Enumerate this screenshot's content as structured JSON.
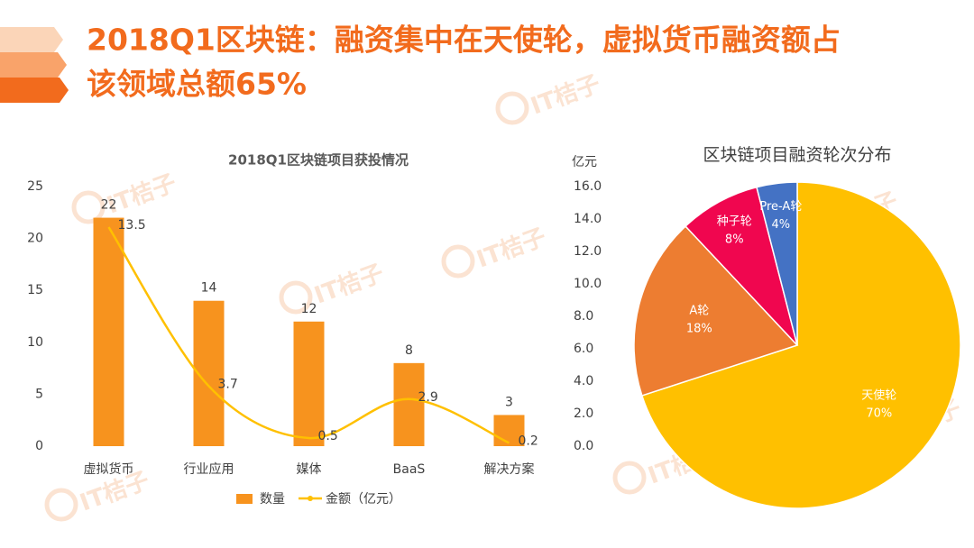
{
  "header": {
    "lines": [
      "2018Q1区块链：融资集中在天使轮，虚拟货币融资额占",
      "该领域总额65%"
    ]
  },
  "watermark": "IT桔子",
  "chart_data": [
    {
      "type": "bar_line",
      "title": "2018Q1区块链项目获投情况",
      "categories": [
        "虚拟货币",
        "行业应用",
        "媒体",
        "BaaS",
        "解决方案"
      ],
      "series": [
        {
          "name": "数量",
          "type": "bar",
          "color": "#f7931e",
          "values": [
            22,
            14,
            12,
            8,
            3
          ]
        },
        {
          "name": "金额（亿元）",
          "type": "line",
          "axis": "y2",
          "color": "#ffc000",
          "values": [
            13.5,
            3.7,
            0.5,
            2.9,
            0.2
          ]
        }
      ],
      "ylim": [
        0,
        25
      ],
      "yticks": [
        0,
        5,
        10,
        15,
        20,
        25
      ],
      "y2label": "亿元",
      "y2lim": [
        0,
        16
      ],
      "y2ticks": [
        {
          "value": 0,
          "label": "0.0"
        },
        {
          "value": 2,
          "label": "2.0"
        },
        {
          "value": 4,
          "label": "4.0"
        },
        {
          "value": 6,
          "label": "6.0"
        },
        {
          "value": 8,
          "label": "8.0"
        },
        {
          "value": 10,
          "label": "10.0"
        },
        {
          "value": 12,
          "label": "12.0"
        },
        {
          "value": 14,
          "label": "14.0"
        },
        {
          "value": 16,
          "label": "16.0"
        }
      ],
      "grid": false,
      "legend": "bottom"
    },
    {
      "type": "pie",
      "title": "区块链项目融资轮次分布",
      "categories": [
        "天使轮",
        "A轮",
        "种子轮",
        "Pre-A轮"
      ],
      "values": [
        70,
        18,
        8,
        4
      ],
      "value_labels": [
        "70%",
        "18%",
        "8%",
        "4%"
      ],
      "colors": [
        "#ffc000",
        "#ed7d31",
        "#f0064f",
        "#4472c4"
      ]
    }
  ]
}
